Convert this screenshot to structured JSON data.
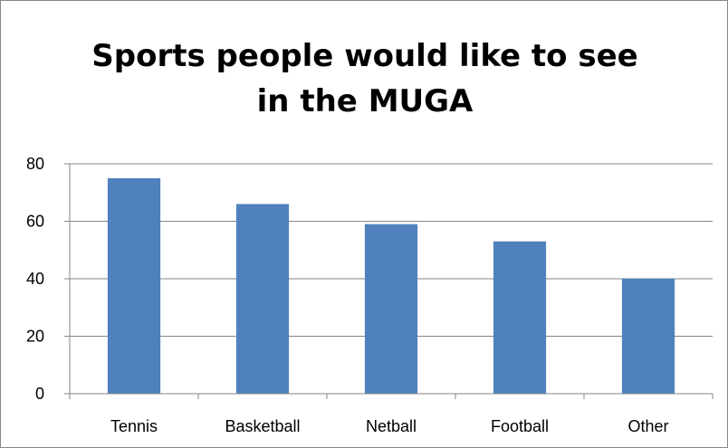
{
  "chart_data": {
    "type": "bar",
    "title_lines": [
      "Sports people would like to see",
      "in the MUGA"
    ],
    "categories": [
      "Tennis",
      "Basketball",
      "Netball",
      "Football",
      "Other"
    ],
    "values": [
      75,
      66,
      59,
      53,
      40
    ],
    "ylim": [
      0,
      80
    ],
    "yticks": [
      0,
      20,
      40,
      60,
      80
    ],
    "grid": true,
    "legend": "none",
    "bar_color": "#4f81bd"
  }
}
